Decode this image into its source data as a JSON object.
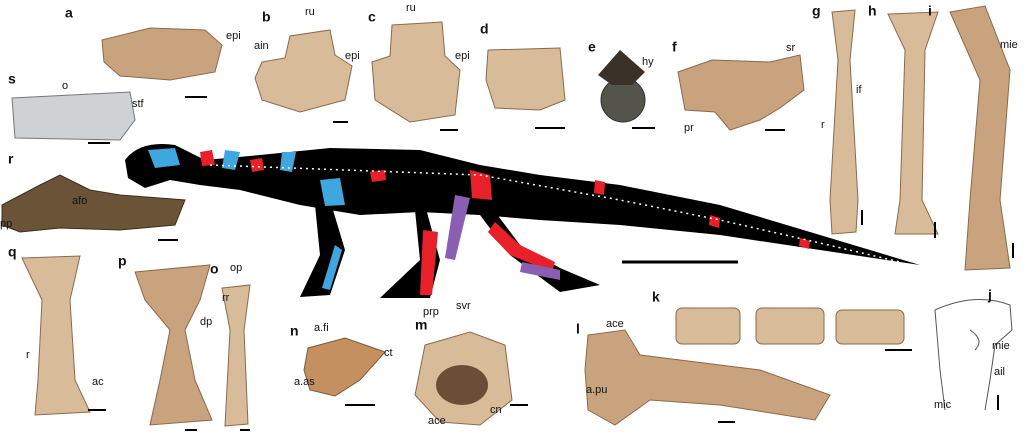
{
  "panels": [
    {
      "letter": "a",
      "labels": [
        "epi"
      ]
    },
    {
      "letter": "b",
      "labels": [
        "ru",
        "ain",
        "epi"
      ]
    },
    {
      "letter": "c",
      "labels": [
        "ru",
        "epi"
      ]
    },
    {
      "letter": "d",
      "labels": []
    },
    {
      "letter": "e",
      "labels": [
        "hy"
      ]
    },
    {
      "letter": "f",
      "labels": [
        "sr",
        "pr"
      ]
    },
    {
      "letter": "g",
      "labels": [
        "if",
        "r"
      ]
    },
    {
      "letter": "h",
      "labels": []
    },
    {
      "letter": "i",
      "labels": [
        "mie"
      ]
    },
    {
      "letter": "s",
      "labels": [
        "o",
        "stf"
      ]
    },
    {
      "letter": "r",
      "labels": [
        "afo",
        "pp"
      ]
    },
    {
      "letter": "q",
      "labels": [
        "r",
        "ac"
      ]
    },
    {
      "letter": "p",
      "labels": [
        "dp"
      ]
    },
    {
      "letter": "o",
      "labels": [
        "op",
        "rr"
      ]
    },
    {
      "letter": "n",
      "labels": [
        "a.fi",
        "ct",
        "a.as"
      ]
    },
    {
      "letter": "m",
      "labels": [
        "prp",
        "svr",
        "ace",
        "cn"
      ]
    },
    {
      "letter": "l",
      "labels": [
        "ace",
        "a.pu"
      ]
    },
    {
      "letter": "k",
      "labels": []
    },
    {
      "letter": "j",
      "labels": [
        "mie",
        "ail",
        "mic"
      ]
    }
  ]
}
